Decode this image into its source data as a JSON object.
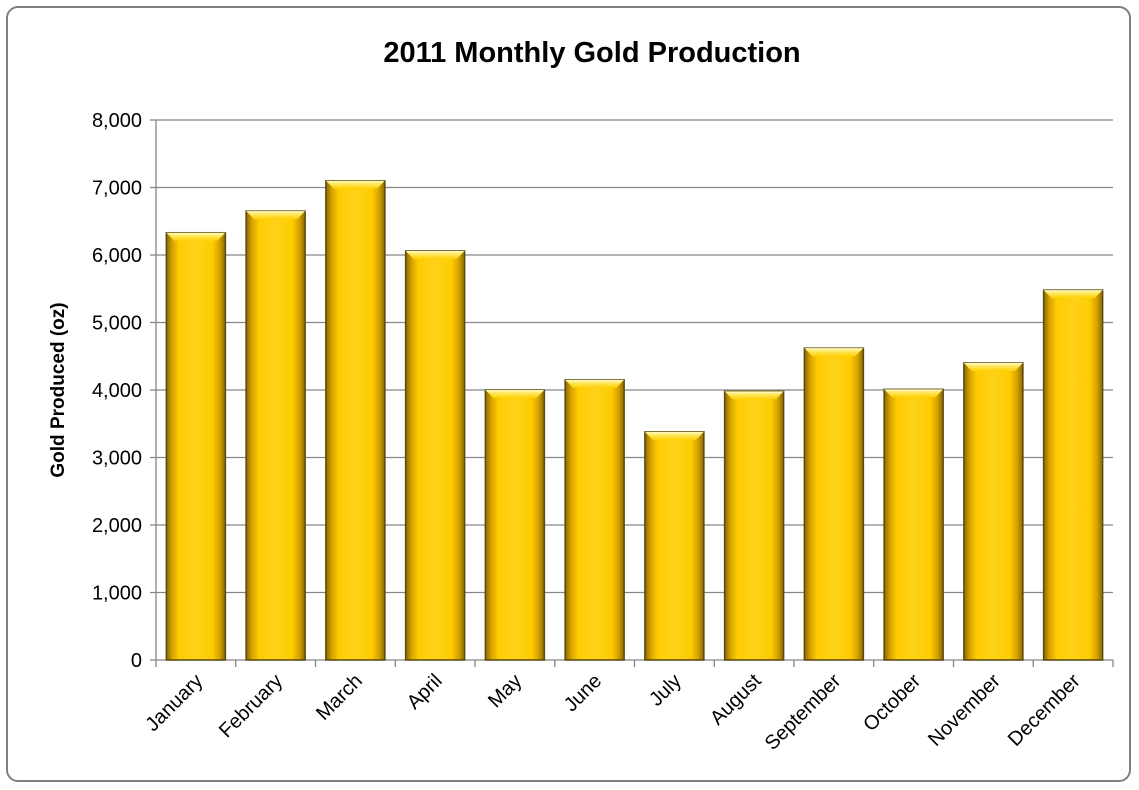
{
  "chart_data": {
    "type": "bar",
    "title": "2011 Monthly Gold Production",
    "xlabel": "",
    "ylabel": "Gold Produced (oz)",
    "ylim": [
      0,
      8000
    ],
    "yticks": [
      "0",
      "1,000",
      "2,000",
      "3,000",
      "4,000",
      "5,000",
      "6,000",
      "7,000",
      "8,000"
    ],
    "categories": [
      "January",
      "February",
      "March",
      "April",
      "May",
      "June",
      "July",
      "August",
      "September",
      "October",
      "November",
      "December"
    ],
    "values": [
      6330,
      6650,
      7100,
      6060,
      4000,
      4150,
      3380,
      3980,
      4620,
      4010,
      4400,
      5480
    ],
    "grid": true,
    "legend": "none",
    "bar_color": "#FFC000",
    "frame_border_color": "#7F7F7F"
  }
}
